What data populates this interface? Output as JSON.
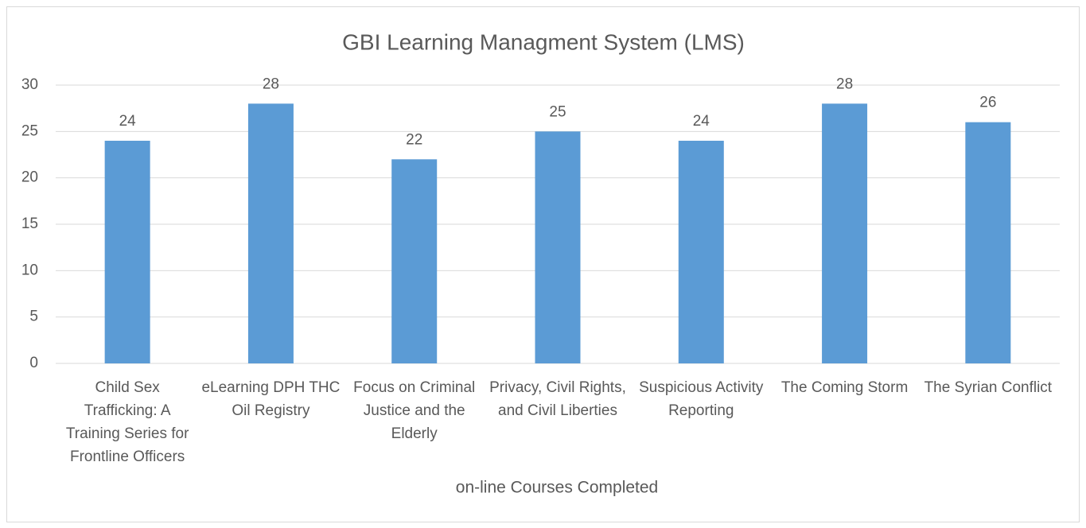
{
  "chart_data": {
    "type": "bar",
    "title": "GBI Learning Managment System (LMS)",
    "x_label": "on-line Courses Completed",
    "categories": [
      "Child Sex Trafficking: A Training Series for Frontline Officers",
      "eLearning DPH THC Oil Registry",
      "Focus on Criminal Justice and the Elderly",
      "Privacy, Civil Rights, and Civil Liberties",
      "Suspicious Activity Reporting",
      "The Coming Storm",
      "The Syrian Conflict"
    ],
    "values": [
      24,
      28,
      22,
      25,
      24,
      28,
      26
    ],
    "color": "#5b9bd5",
    "ylim": [
      0,
      30
    ],
    "yticks": [
      0,
      5,
      10,
      15,
      20,
      25,
      30
    ],
    "grid": true
  }
}
